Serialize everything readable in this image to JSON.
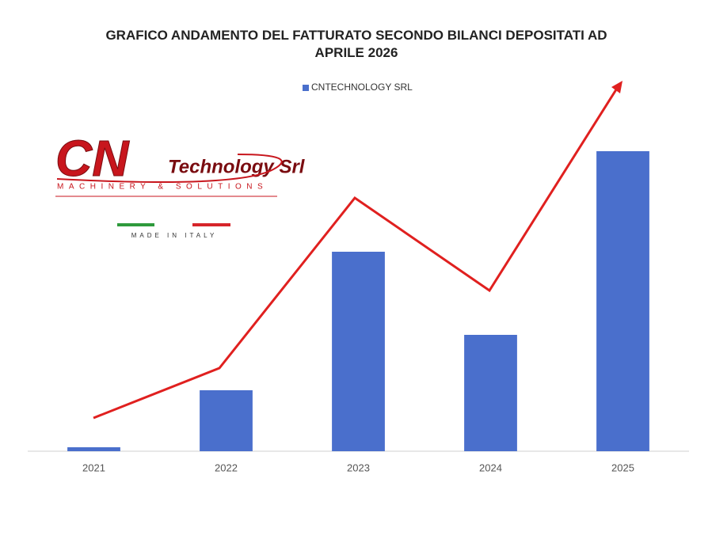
{
  "chart_data": {
    "type": "bar",
    "title": "GRAFICO ANDAMENTO DEL FATTURATO SECONDO BILANCI DEPOSITATI AD APRILE 2026",
    "categories": [
      "2021",
      "2022",
      "2023",
      "2024",
      "2025"
    ],
    "series": [
      {
        "name": "CNTECHNOLOGY SRL",
        "color": "#4a6fcc",
        "values": [
          5,
          77,
          252,
          147,
          379
        ]
      }
    ],
    "ylim": [
      0,
      400
    ],
    "legend": "top"
  },
  "logo": {
    "mark": "CN",
    "name": "Technology Srl",
    "tagline": "MACHINERY & SOLUTIONS",
    "origin": "MADE IN ITALY"
  }
}
